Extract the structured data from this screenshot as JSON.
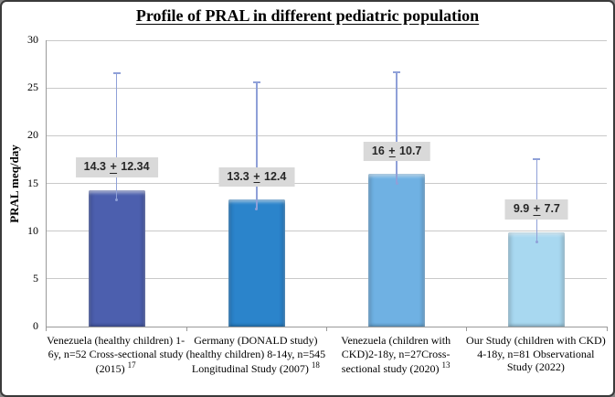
{
  "figure": {
    "title": "Profile of PRAL in different pediatric population"
  },
  "chart_data": {
    "type": "bar",
    "title": "Profile of PRAL in different pediatric population",
    "xlabel": "",
    "ylabel": "PRAL meq/day",
    "ylim": [
      0,
      30
    ],
    "ytick_interval": 5,
    "yticks": [
      "0",
      "5",
      "10",
      "15",
      "20",
      "25",
      "30"
    ],
    "grid": true,
    "legend_position": "none",
    "categories": [
      "Venezuela (healthy children) 1-6y, n=52 Cross-sectional study (2015)",
      "Germany (DONALD study) (healthy children) 8-14y, n=545 Longitudinal Study (2007)",
      "Venezuela (children with CKD)2-18y, n=27Cross-sectional study (2020)",
      "Our Study (children with CKD) 4-18y, n=81 Observational Study (2022)"
    ],
    "category_refs": [
      "17",
      "18",
      "13",
      ""
    ],
    "values": [
      14.3,
      13.3,
      16,
      9.9
    ],
    "errors_sd": [
      12.34,
      12.4,
      10.7,
      7.7
    ],
    "data_labels": [
      {
        "mean": "14.3",
        "sd": "12.34",
        "text": "14.3 ± 12.34"
      },
      {
        "mean": "13.3",
        "sd": "12.4",
        "text": "13.3 ± 12.4"
      },
      {
        "mean": "16",
        "sd": "10.7",
        "text": "16 ± 10.7"
      },
      {
        "mean": "9.9",
        "sd": "7.7",
        "text": "9.9 ± 7.7"
      }
    ],
    "plus_minus_glyph": "+",
    "colors": {
      "bars": [
        "#4C5FAE",
        "#2B84CB",
        "#6FB1E3",
        "#A8D8F0"
      ],
      "error_bar": "#8FA0D8",
      "data_label_bg": "#D9D9D9",
      "gridline": "#C9C9C9",
      "axis_line": "#9A9A9A",
      "text": "#000000"
    }
  }
}
